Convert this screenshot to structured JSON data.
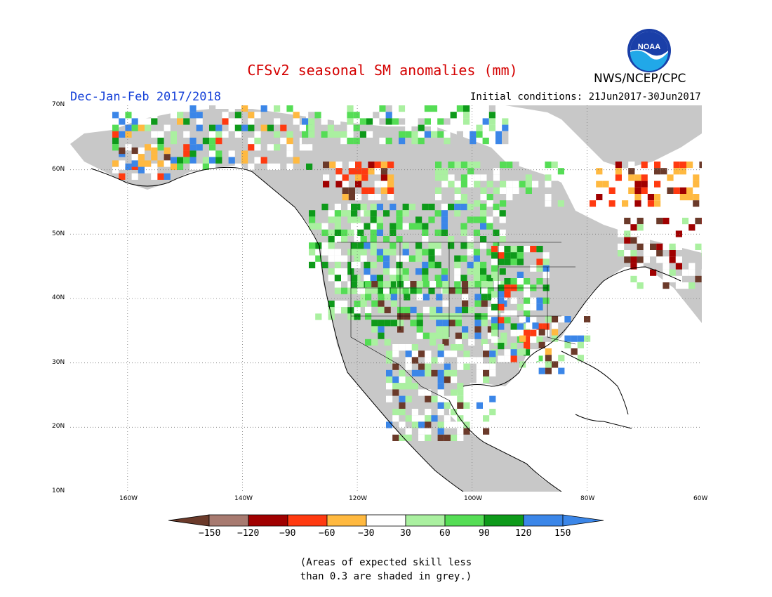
{
  "title": "CFSv2 seasonal SM anomalies (mm)",
  "season": "Dec-Jan-Feb 2017/2018",
  "initial_conditions": "Initial conditions: 21Jun2017-30Jun2017",
  "agency": "NWS/NCEP/CPC",
  "logo_text": "NOAA",
  "lat_labels": [
    "70N",
    "60N",
    "50N",
    "40N",
    "30N",
    "20N",
    "10N"
  ],
  "lon_labels": [
    "160W",
    "140W",
    "120W",
    "100W",
    "80W",
    "60W"
  ],
  "colorbar": {
    "labels": [
      "−150",
      "−120",
      "−90",
      "−60",
      "−30",
      "30",
      "60",
      "90",
      "120",
      "150"
    ],
    "colors": [
      "#6b3a2a",
      "#a77a70",
      "#a00000",
      "#ff3a10",
      "#ffb940",
      "#ffffff",
      "#aaf0a0",
      "#55dd55",
      "#0e9a1a",
      "#3b86e8",
      "#3b86e8"
    ]
  },
  "note_line1": "(Areas of expected skill less",
  "note_line2": "than 0.3 are shaded in grey.)",
  "colors": {
    "grey_low_skill": "#c8c8c8",
    "ocean": "#ffffff",
    "title": "#d40000",
    "season": "#1540d8"
  }
}
